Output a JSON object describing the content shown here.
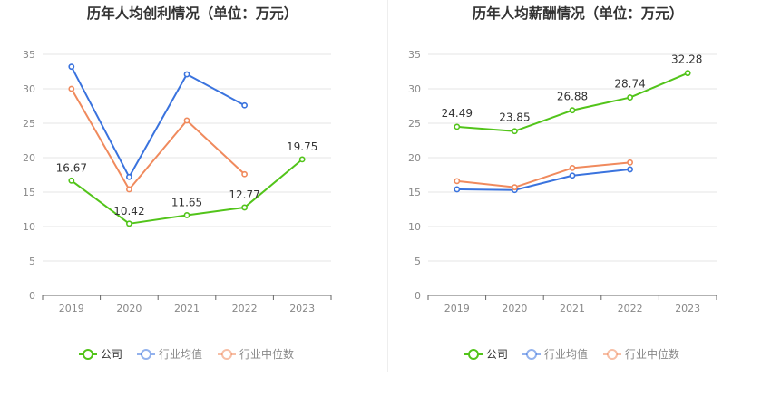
{
  "colors": {
    "company": "#52c41a",
    "industry_avg": "#3a73de",
    "industry_median": "#f08a5d",
    "axis": "#666666",
    "grid": "#e6e6e6",
    "tick_text": "#888888"
  },
  "chart_data": [
    {
      "type": "line",
      "title": "历年人均创利情况（单位：万元）",
      "categories": [
        "2019",
        "2020",
        "2021",
        "2022",
        "2023"
      ],
      "ylim": [
        0,
        35
      ],
      "yticks": [
        0,
        5,
        10,
        15,
        20,
        25,
        30,
        35
      ],
      "grid": true,
      "legend_position": "bottom",
      "series": [
        {
          "name": "公司",
          "key": "company",
          "values": [
            16.67,
            10.42,
            11.65,
            12.77,
            19.75
          ],
          "labels": [
            "16.67",
            "10.42",
            "11.65",
            "12.77",
            "19.75"
          ]
        },
        {
          "name": "行业均值",
          "key": "industry_avg",
          "values": [
            33.2,
            17.2,
            32.1,
            27.6,
            null
          ]
        },
        {
          "name": "行业中位数",
          "key": "industry_median",
          "values": [
            30.0,
            15.4,
            25.4,
            17.6,
            null
          ]
        }
      ]
    },
    {
      "type": "line",
      "title": "历年人均薪酬情况（单位：万元）",
      "categories": [
        "2019",
        "2020",
        "2021",
        "2022",
        "2023"
      ],
      "ylim": [
        0,
        35
      ],
      "yticks": [
        0,
        5,
        10,
        15,
        20,
        25,
        30,
        35
      ],
      "grid": true,
      "legend_position": "bottom",
      "series": [
        {
          "name": "公司",
          "key": "company",
          "values": [
            24.49,
            23.85,
            26.88,
            28.74,
            32.28
          ],
          "labels": [
            "24.49",
            "23.85",
            "26.88",
            "28.74",
            "32.28"
          ]
        },
        {
          "name": "行业均值",
          "key": "industry_avg",
          "values": [
            15.4,
            15.3,
            17.4,
            18.3,
            null
          ]
        },
        {
          "name": "行业中位数",
          "key": "industry_median",
          "values": [
            16.6,
            15.7,
            18.5,
            19.3,
            null
          ]
        }
      ]
    }
  ]
}
